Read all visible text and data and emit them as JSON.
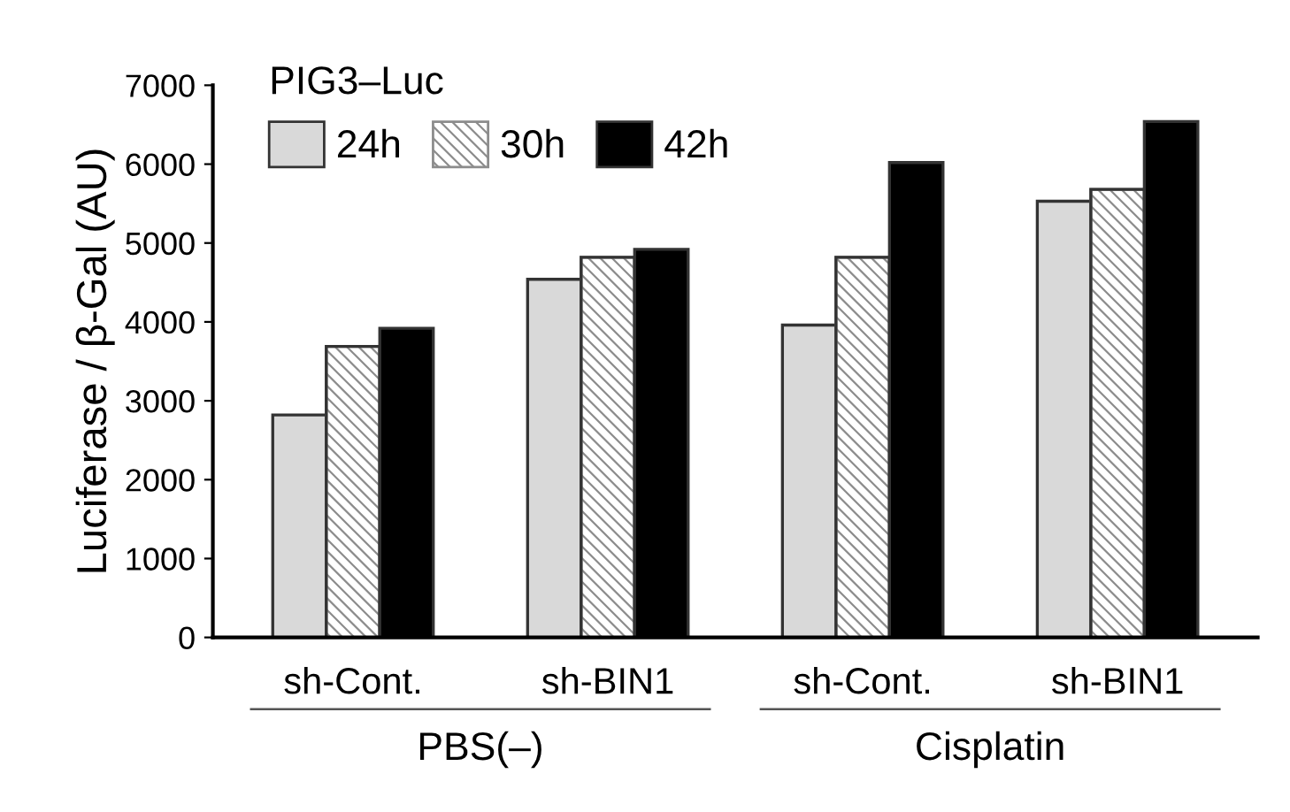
{
  "chart_data": {
    "type": "bar",
    "ylabel": "Luciferase / β-Gal (AU)",
    "legend_title": "PIG3–Luc",
    "categories": [
      "sh-Cont.",
      "sh-BIN1",
      "sh-Cont.",
      "sh-BIN1"
    ],
    "series": [
      {
        "name": "24h",
        "color": "#d9d9d9",
        "values": [
          2820,
          4540,
          3960,
          5530
        ]
      },
      {
        "name": "30h",
        "color": "#8c8c8c",
        "values": [
          3690,
          4820,
          4820,
          5680
        ]
      },
      {
        "name": "42h",
        "color": "#000000",
        "values": [
          3920,
          4920,
          6020,
          6540
        ]
      }
    ],
    "annotations": [
      "PBS(–)",
      "Cisplatin"
    ],
    "ylim": [
      0,
      7000
    ],
    "yticks": [
      0,
      1000,
      2000,
      3000,
      4000,
      5000,
      6000,
      7000
    ],
    "grid": false,
    "legend": "top left"
  }
}
